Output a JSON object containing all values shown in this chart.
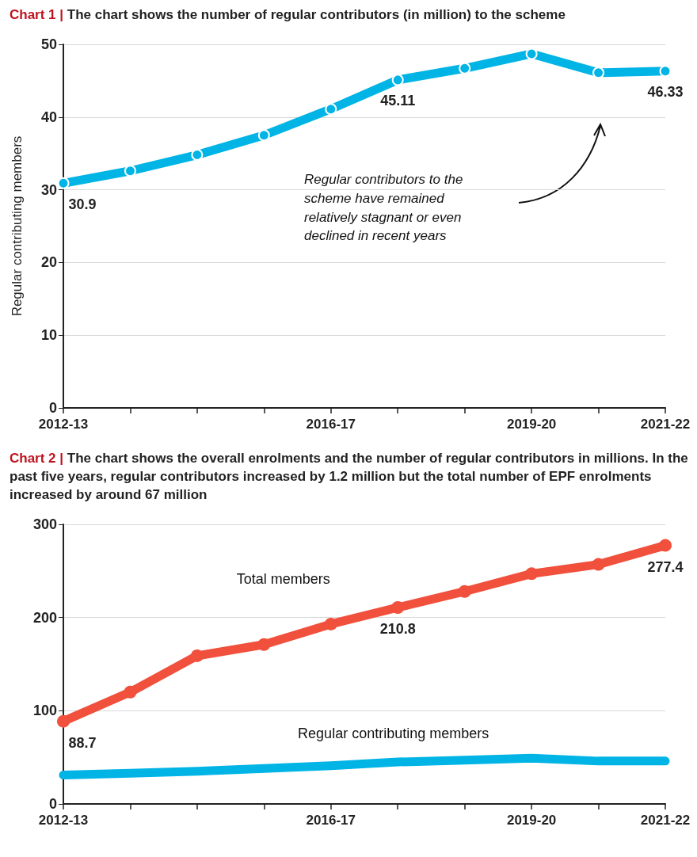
{
  "chart_data": [
    {
      "type": "line",
      "title": "Chart 1 | The chart shows the number of regular contributors (in million) to the scheme",
      "ylabel": "Regular contributing members",
      "categories": [
        "2012-13",
        null,
        null,
        null,
        "2016-17",
        null,
        null,
        "2019-20",
        null,
        "2021-22"
      ],
      "series": [
        {
          "color": "#00b4e6",
          "values": [
            30.9,
            32.6,
            34.8,
            37.5,
            41.1,
            45.11,
            46.7,
            48.7,
            46.1,
            46.33
          ],
          "value_labels": [
            "30.9",
            null,
            null,
            null,
            null,
            "45.11",
            null,
            null,
            null,
            "46.33"
          ],
          "marker": "circle"
        }
      ],
      "ylim": [
        0,
        50
      ],
      "yticks": [
        0,
        10,
        20,
        30,
        40,
        50
      ],
      "grid": "y",
      "legend": false,
      "annotations": [
        "Regular contributors to the scheme have remained relatively stagnant or even declined in recent years"
      ]
    },
    {
      "type": "line",
      "title": "Chart 2 | The chart shows the overall enrolments and the number of regular contributors in millions. In the past five years, regular contributors increased by 1.2 million but the total number of EPF enrolments increased by around 67 million",
      "categories": [
        "2012-13",
        null,
        null,
        null,
        "2016-17",
        null,
        null,
        "2019-20",
        null,
        "2021-22"
      ],
      "series": [
        {
          "name": "Total members",
          "color": "#f0503c",
          "values": [
            88.7,
            120,
            159,
            171,
            193,
            210.8,
            228,
            247,
            257,
            277.4
          ],
          "value_labels": [
            "88.7",
            null,
            null,
            null,
            null,
            "210.8",
            null,
            null,
            null,
            "277.4"
          ],
          "marker": "circle"
        },
        {
          "name": "Regular contributing members",
          "color": "#00b4e6",
          "values": [
            31,
            33,
            35,
            38,
            41,
            45,
            47,
            49,
            46,
            46
          ],
          "marker": "none"
        }
      ],
      "ylim": [
        0,
        300
      ],
      "yticks": [
        0,
        100,
        200,
        300
      ],
      "grid": "y",
      "legend": false
    }
  ]
}
